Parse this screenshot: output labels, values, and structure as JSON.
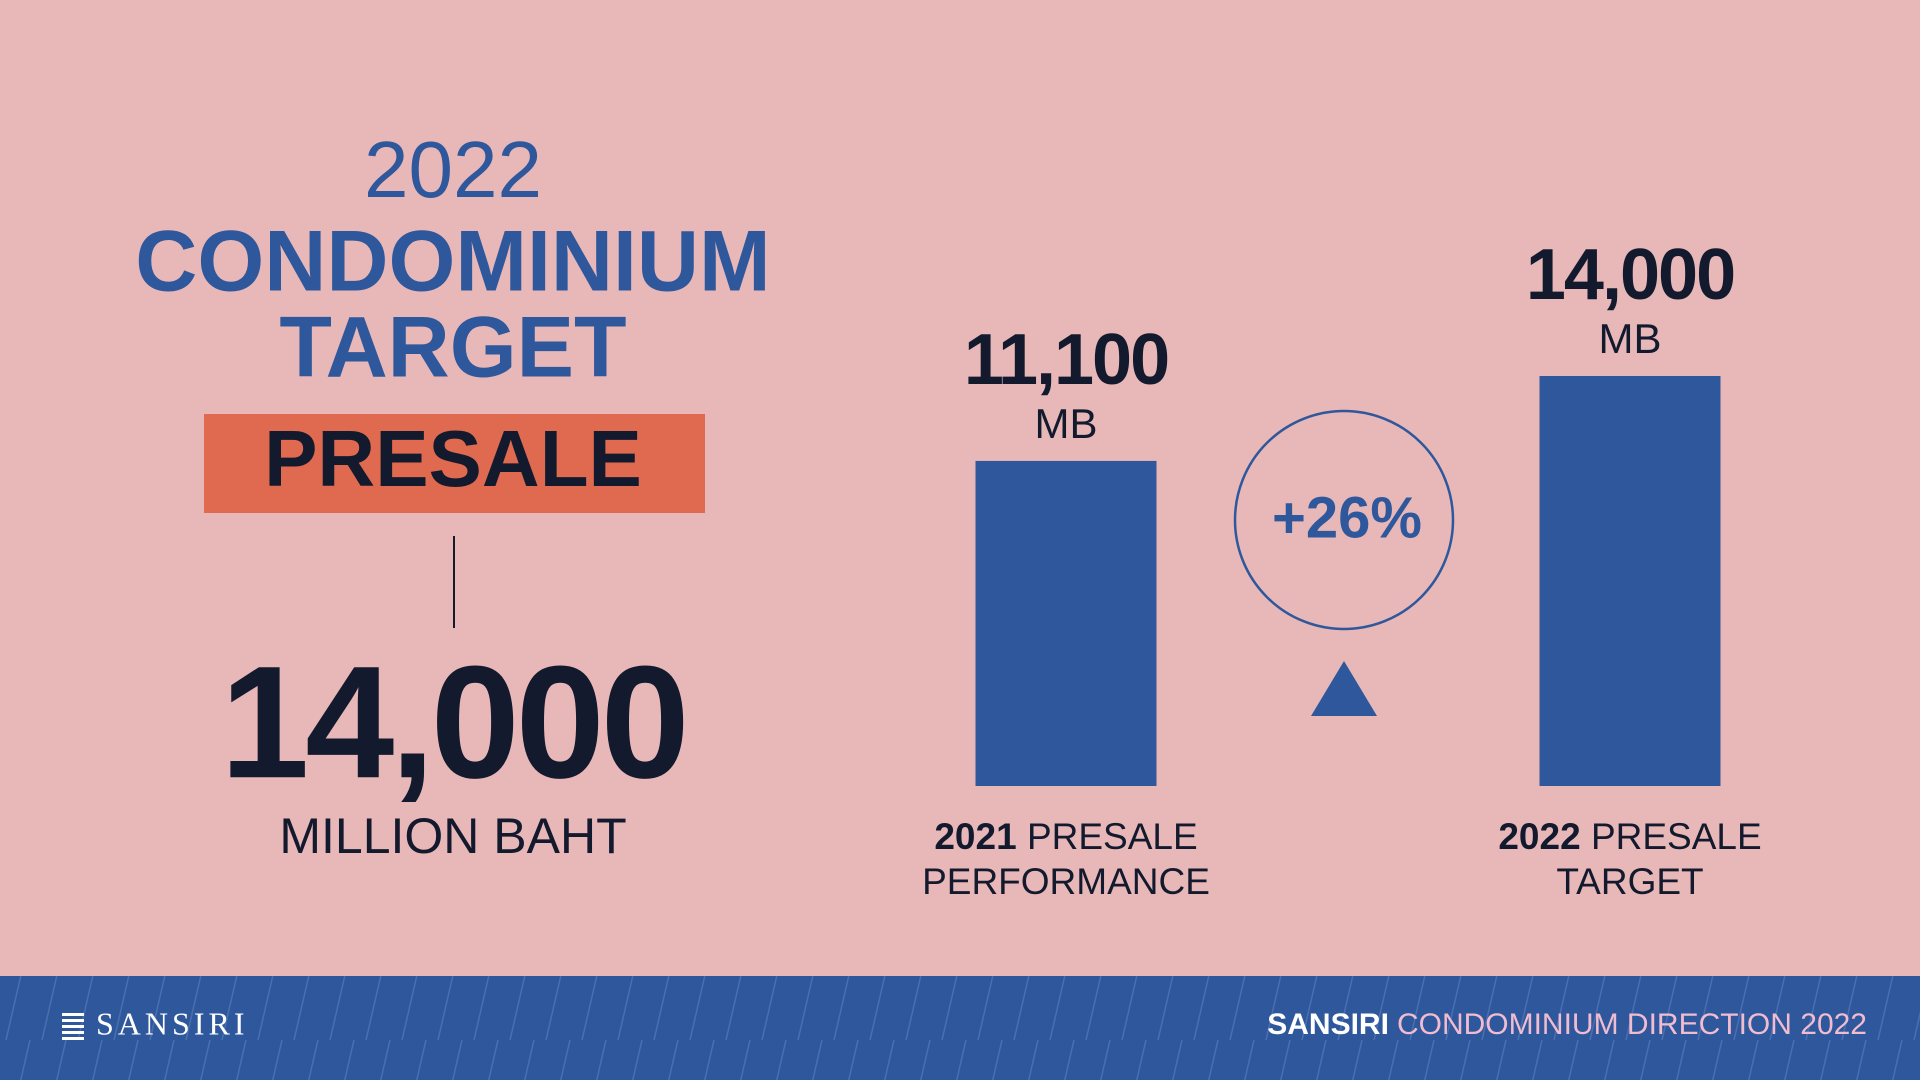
{
  "header": {
    "year": "2022",
    "title_line1": "CONDOMINIUM",
    "title_line2": "TARGET",
    "badge": "PRESALE",
    "amount": "14,000",
    "unit": "MILLION BAHT"
  },
  "chart_data": {
    "type": "bar",
    "categories": [
      "2021",
      "2022"
    ],
    "captions": [
      "PRESALE PERFORMANCE",
      "PRESALE TARGET"
    ],
    "values": [
      11100,
      14000
    ],
    "value_labels": [
      "11,100",
      "14,000"
    ],
    "unit": "MB",
    "color": "#2f579c",
    "ylim": [
      0,
      14000
    ],
    "change_label": "+26%"
  },
  "footer": {
    "logo": "SANSIRI",
    "brand": "SANSIRI",
    "tagline": "CONDOMINIUM DIRECTION 2022"
  }
}
